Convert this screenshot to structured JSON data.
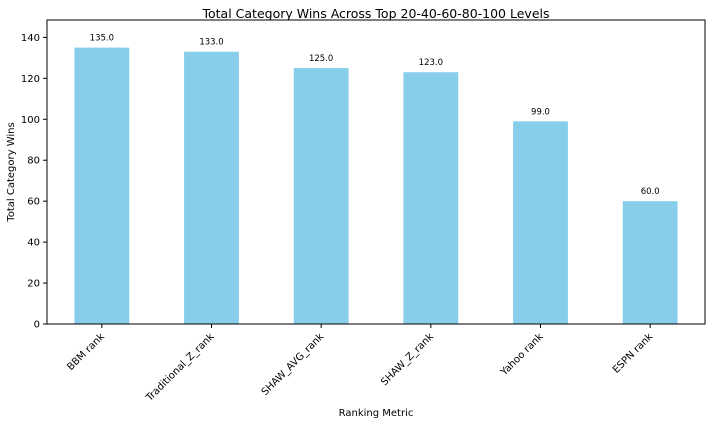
{
  "chart_data": {
    "type": "bar",
    "title": "Total Category Wins Across Top 20-40-60-80-100 Levels",
    "xlabel": "Ranking Metric",
    "ylabel": "Total Category Wins",
    "categories": [
      "BBM rank",
      "Traditional_Z_rank",
      "SHAW_AVG_rank",
      "SHAW_Z_rank",
      "Yahoo rank",
      "ESPN rank"
    ],
    "values": [
      135,
      133,
      125,
      123,
      99,
      60
    ],
    "data_labels": [
      "135.0",
      "133.0",
      "125.0",
      "123.0",
      "99.0",
      "60.0"
    ],
    "ylim": [
      0,
      148.5
    ],
    "yticks": [
      0,
      20,
      40,
      60,
      80,
      100,
      120,
      140
    ],
    "bar_color": "#87CEEB",
    "grid": false,
    "legend": "none"
  }
}
